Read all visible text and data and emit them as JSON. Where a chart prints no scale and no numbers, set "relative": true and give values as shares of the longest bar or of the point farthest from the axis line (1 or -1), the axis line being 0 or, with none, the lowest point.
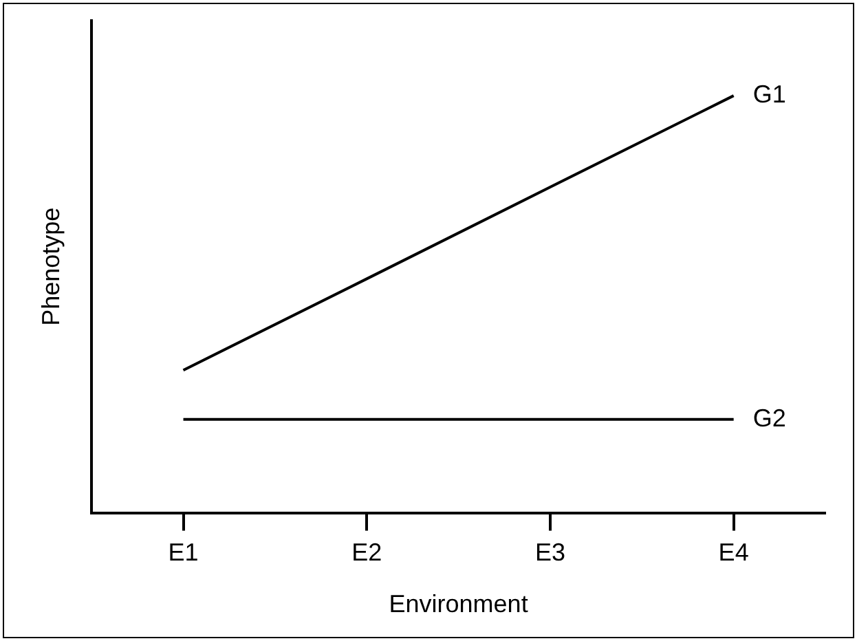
{
  "chart_data": {
    "type": "line",
    "relative": true,
    "xlabel": "Environment",
    "ylabel": "Phenotype",
    "categories": [
      "E1",
      "E2",
      "E3",
      "E4"
    ],
    "series": [
      {
        "name": "G1",
        "color": "#000000",
        "values": [
          0.342,
          0.561,
          0.781,
          1
        ]
      },
      {
        "name": "G2",
        "color": "#000000",
        "values": [
          0.224,
          0.224,
          0.224,
          0.224
        ]
      }
    ],
    "grid": false,
    "legend": false,
    "marker": "none",
    "line_style": "solid"
  }
}
